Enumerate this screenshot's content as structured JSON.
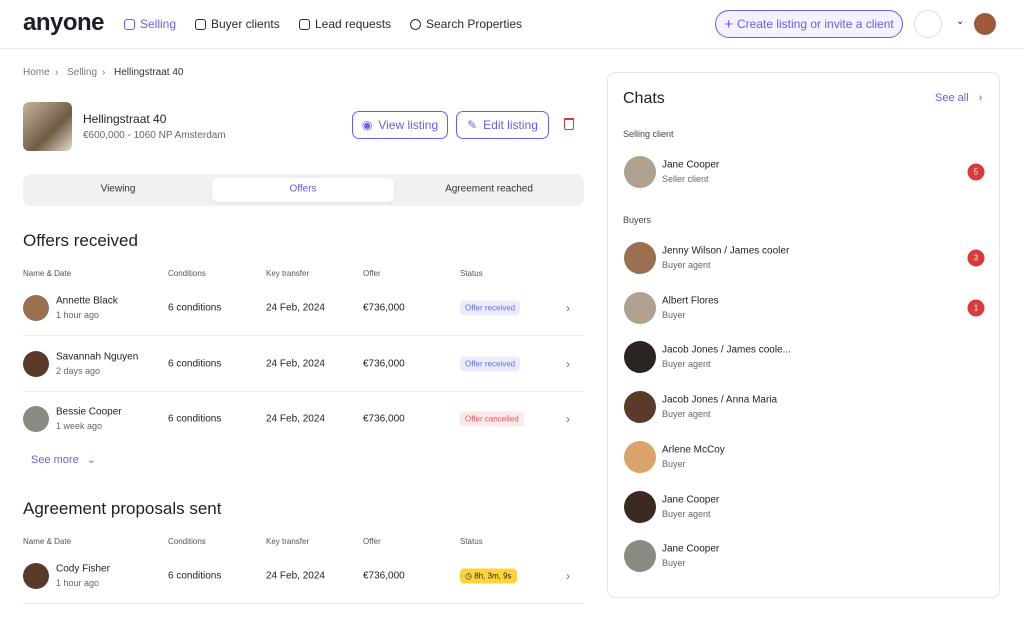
{
  "header": {
    "logo": "anyone",
    "nav": [
      "Selling",
      "Buyer clients",
      "Lead requests",
      "Search Properties"
    ],
    "create_button": "Create listing or invite a client"
  },
  "breadcrumb": [
    "Home",
    "Selling",
    "Hellingstraat 40"
  ],
  "listing": {
    "title": "Hellingstraat 40",
    "subtitle": "€600,000 - 1060 NP Amsterdam",
    "actions": [
      "View listing",
      "Edit listing"
    ]
  },
  "tabs": [
    "Viewing",
    "Offers",
    "Agreement reached"
  ],
  "offers": {
    "title": "Offers received",
    "columns": [
      "Name & Date",
      "Conditions",
      "Key transfer",
      "Offer",
      "Status"
    ],
    "rows": [
      {
        "name": "Annette Black",
        "time": "1 hour ago",
        "conditions": "6 conditions",
        "key_transfer": "24 Feb, 2024",
        "offer": "€736,000",
        "status": "Offer received",
        "status_color": "#6a6ee0"
      },
      {
        "name": "Savannah Nguyen",
        "time": "2 days ago",
        "conditions": "6 conditions",
        "key_transfer": "24 Feb, 2024",
        "offer": "€736,000",
        "status": "Offer received",
        "status_color": "#6a6ee0"
      },
      {
        "name": "Bessie Cooper",
        "time": "1 week ago",
        "conditions": "6 conditions",
        "key_transfer": "24 Feb, 2024",
        "offer": "€736,000",
        "status": "Offer cancelled",
        "status_color": "#e05a5a"
      }
    ],
    "see_more": "See more"
  },
  "proposals": {
    "title": "Agreement proposals sent",
    "columns": [
      "Name & Date",
      "Conditions",
      "Key transfer",
      "Offer",
      "Status"
    ],
    "rows": [
      {
        "name": "Cody Fisher",
        "time": "1 hour ago",
        "conditions": "6 conditions",
        "key_transfer": "24 Feb, 2024",
        "offer": "€736,000",
        "status": "8h, 3m, 9s",
        "status_color": "#ffd43b"
      }
    ]
  },
  "chats": {
    "title": "Chats",
    "see_all": "See all",
    "selling_label": "Selling client",
    "selling": [
      {
        "name": "Jane Cooper",
        "role": "Seller client",
        "unread": "5"
      }
    ],
    "buyers_label": "Buyers",
    "buyers": [
      {
        "name": "Jenny Wilson / James cooler",
        "role": "Buyer agent",
        "unread": "3"
      },
      {
        "name": "Albert Flores",
        "role": "Buyer",
        "unread": "1"
      },
      {
        "name": "Jacob Jones / James coole...",
        "role": "Buyer agent"
      },
      {
        "name": "Jacob Jones / Anna Maria",
        "role": "Buyer agent"
      },
      {
        "name": "Arlene McCoy",
        "role": "Buyer"
      },
      {
        "name": "Jane Cooper",
        "role": "Buyer agent"
      },
      {
        "name": "Jane Cooper",
        "role": "Buyer"
      }
    ]
  }
}
